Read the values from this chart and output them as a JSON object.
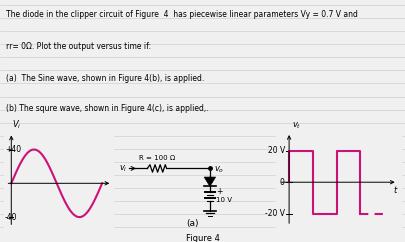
{
  "background_color": "#f0f0f0",
  "line_color": "#c8c8c8",
  "text_color": "#000000",
  "text_lines": [
    "The diode in the clipper circuit of Figure  4  has piecewise linear parameters Vy = 0.7 V and",
    "rr= 0Ω. Plot the output versus time if:",
    "(a)  The Sine wave, shown in Figure 4(b), is applied.",
    "(b) The squre wave, shown in Figure 4(c), is applied,."
  ],
  "sine_color": "#cc1177",
  "sine_amplitude": 40,
  "sine_linewidth": 1.5,
  "sq_color": "#cc1177",
  "sq_high": 20,
  "sq_low": -20,
  "sq_linewidth": 1.5,
  "figure_label": "Figure 4",
  "part_a_label": "(a)",
  "R_label": "R = 100 Ω",
  "battery_label": "10 V"
}
